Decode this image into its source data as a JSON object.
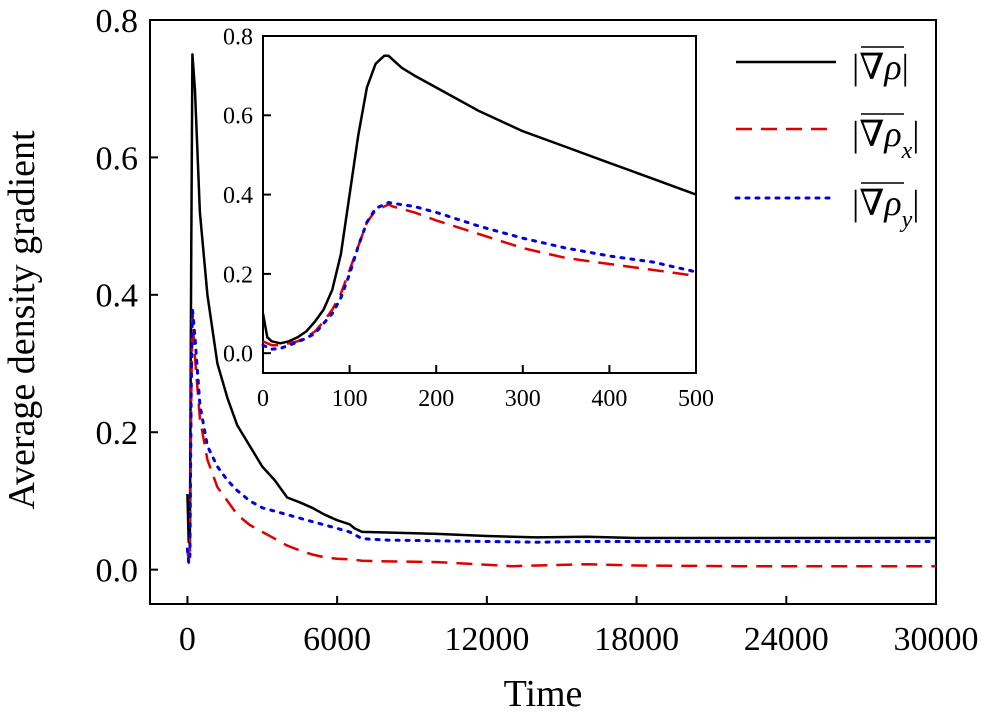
{
  "chart_data": [
    {
      "id": "main",
      "type": "line",
      "xlabel": "Time",
      "ylabel": "Average density gradient",
      "xlim": [
        -1500,
        30000
      ],
      "ylim": [
        -0.05,
        0.8
      ],
      "xticks": [
        0,
        6000,
        12000,
        18000,
        24000,
        30000
      ],
      "xtick_labels": [
        "0",
        "6000",
        "12000",
        "18000",
        "24000",
        "30000"
      ],
      "yticks": [
        0.0,
        0.2,
        0.4,
        0.6,
        0.8
      ],
      "ytick_labels": [
        "0.0",
        "0.2",
        "0.4",
        "0.6",
        "0.8"
      ],
      "grid": false,
      "legend_position": "top-right",
      "series": [
        {
          "key": "grad",
          "color": "#000000",
          "dash": "solid",
          "x": [
            0,
            50,
            100,
            150,
            200,
            300,
            500,
            800,
            1200,
            1600,
            2000,
            2500,
            3000,
            3500,
            4000,
            4500,
            5000,
            5500,
            6000,
            6500,
            6700,
            7000,
            8000,
            10000,
            12000,
            14000,
            16000,
            18000,
            22000,
            26000,
            30000
          ],
          "y": [
            0.11,
            0.04,
            0.05,
            0.45,
            0.75,
            0.7,
            0.52,
            0.4,
            0.3,
            0.25,
            0.21,
            0.18,
            0.15,
            0.13,
            0.105,
            0.098,
            0.09,
            0.08,
            0.072,
            0.066,
            0.06,
            0.055,
            0.054,
            0.052,
            0.049,
            0.047,
            0.048,
            0.046,
            0.046,
            0.046,
            0.046
          ]
        },
        {
          "key": "grad_x",
          "color": "#e00000",
          "dash": "dashed",
          "x": [
            0,
            50,
            100,
            150,
            200,
            300,
            500,
            800,
            1200,
            1600,
            2000,
            2500,
            3000,
            3500,
            4000,
            4500,
            5000,
            5500,
            6000,
            6500,
            7000,
            8000,
            10000,
            12000,
            13000,
            14000,
            16000,
            18000,
            22000,
            26000,
            30000
          ],
          "y": [
            0.03,
            0.01,
            0.02,
            0.25,
            0.37,
            0.31,
            0.22,
            0.16,
            0.12,
            0.1,
            0.08,
            0.065,
            0.055,
            0.045,
            0.035,
            0.028,
            0.022,
            0.018,
            0.016,
            0.015,
            0.013,
            0.012,
            0.011,
            0.007,
            0.005,
            0.006,
            0.008,
            0.006,
            0.005,
            0.005,
            0.005
          ]
        },
        {
          "key": "grad_y",
          "color": "#0000e0",
          "dash": "dotted",
          "x": [
            0,
            50,
            100,
            150,
            200,
            300,
            500,
            800,
            1200,
            1600,
            2000,
            2500,
            3000,
            3500,
            4000,
            4500,
            5000,
            5500,
            6000,
            6500,
            7000,
            8000,
            10000,
            12000,
            14000,
            16000,
            18000,
            22000,
            26000,
            30000
          ],
          "y": [
            0.03,
            0.01,
            0.02,
            0.26,
            0.38,
            0.34,
            0.24,
            0.18,
            0.15,
            0.13,
            0.115,
            0.1,
            0.09,
            0.085,
            0.08,
            0.075,
            0.07,
            0.065,
            0.06,
            0.055,
            0.045,
            0.043,
            0.042,
            0.041,
            0.04,
            0.041,
            0.041,
            0.041,
            0.041,
            0.041
          ]
        }
      ]
    },
    {
      "id": "inset",
      "type": "line",
      "xlim": [
        0,
        500
      ],
      "ylim": [
        -0.05,
        0.8
      ],
      "xticks": [
        0,
        100,
        200,
        300,
        400,
        500
      ],
      "xtick_labels": [
        "0",
        "100",
        "200",
        "300",
        "400",
        "500"
      ],
      "yticks": [
        0.0,
        0.2,
        0.4,
        0.6,
        0.8
      ],
      "ytick_labels": [
        "0.0",
        "0.2",
        "0.4",
        "0.6",
        "0.8"
      ],
      "grid": false,
      "series": [
        {
          "key": "grad",
          "color": "#000000",
          "dash": "solid",
          "x": [
            0,
            5,
            10,
            20,
            30,
            40,
            50,
            60,
            70,
            80,
            90,
            100,
            110,
            120,
            130,
            140,
            145,
            150,
            160,
            175,
            200,
            250,
            300,
            350,
            400,
            450,
            500
          ],
          "y": [
            0.1,
            0.04,
            0.03,
            0.025,
            0.03,
            0.04,
            0.055,
            0.08,
            0.11,
            0.16,
            0.25,
            0.4,
            0.55,
            0.67,
            0.73,
            0.75,
            0.75,
            0.74,
            0.72,
            0.7,
            0.67,
            0.61,
            0.56,
            0.52,
            0.48,
            0.44,
            0.4
          ]
        },
        {
          "key": "grad_x",
          "color": "#e00000",
          "dash": "dashed",
          "x": [
            0,
            5,
            10,
            20,
            30,
            40,
            50,
            60,
            70,
            80,
            90,
            100,
            110,
            120,
            130,
            140,
            145,
            150,
            175,
            200,
            250,
            300,
            350,
            400,
            450,
            500
          ],
          "y": [
            0.03,
            0.025,
            0.02,
            0.02,
            0.025,
            0.03,
            0.04,
            0.055,
            0.08,
            0.11,
            0.15,
            0.21,
            0.27,
            0.33,
            0.36,
            0.37,
            0.375,
            0.37,
            0.355,
            0.335,
            0.3,
            0.265,
            0.24,
            0.225,
            0.21,
            0.195
          ]
        },
        {
          "key": "grad_y",
          "color": "#0000e0",
          "dash": "dotted",
          "x": [
            0,
            5,
            10,
            20,
            30,
            40,
            50,
            60,
            70,
            80,
            90,
            100,
            110,
            120,
            130,
            140,
            145,
            150,
            175,
            200,
            250,
            300,
            350,
            400,
            450,
            500
          ],
          "y": [
            0.02,
            0.015,
            0.01,
            0.012,
            0.02,
            0.028,
            0.038,
            0.05,
            0.075,
            0.1,
            0.14,
            0.2,
            0.27,
            0.33,
            0.365,
            0.375,
            0.38,
            0.378,
            0.37,
            0.355,
            0.32,
            0.29,
            0.265,
            0.245,
            0.23,
            0.205
          ]
        }
      ]
    }
  ]
}
